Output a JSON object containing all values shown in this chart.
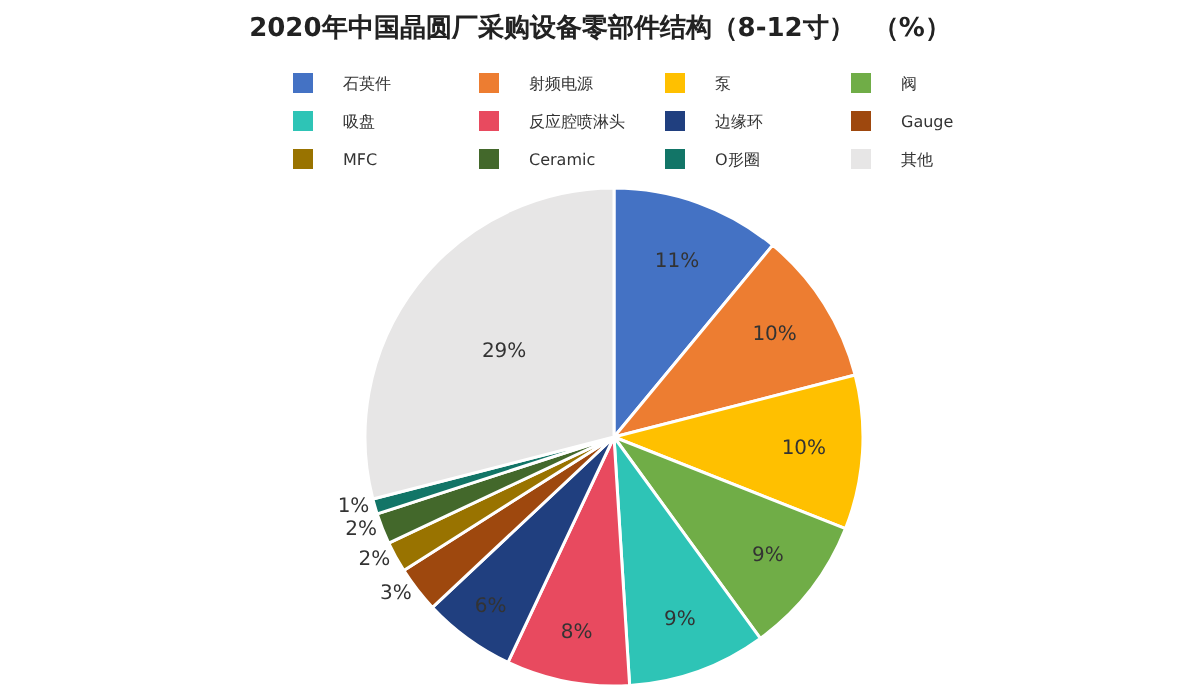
{
  "chart_data": {
    "type": "pie",
    "title": "2020年中国晶圆厂采购设备零部件结构（8-12寸）  （%）",
    "categories": [
      "石英件",
      "射频电源",
      "泵",
      "阀",
      "吸盘",
      "反应腔喷淋头",
      "边缘环",
      "Gauge",
      "MFC",
      "Ceramic",
      "O形圈",
      "其他"
    ],
    "values": [
      11,
      10,
      10,
      9,
      9,
      8,
      6,
      3,
      2,
      2,
      1,
      29
    ],
    "value_labels": [
      "11%",
      "10%",
      "10%",
      "9%",
      "9%",
      "8%",
      "6%",
      "3%",
      "2%",
      "2%",
      "1%",
      "29%"
    ],
    "colors": [
      "#4472c4",
      "#ed7d31",
      "#ffc000",
      "#70ad47",
      "#2ec4b6",
      "#e84a5f",
      "#203f7f",
      "#9e480e",
      "#997300",
      "#43682b",
      "#127567",
      "#e7e6e6"
    ],
    "legend": "top"
  }
}
